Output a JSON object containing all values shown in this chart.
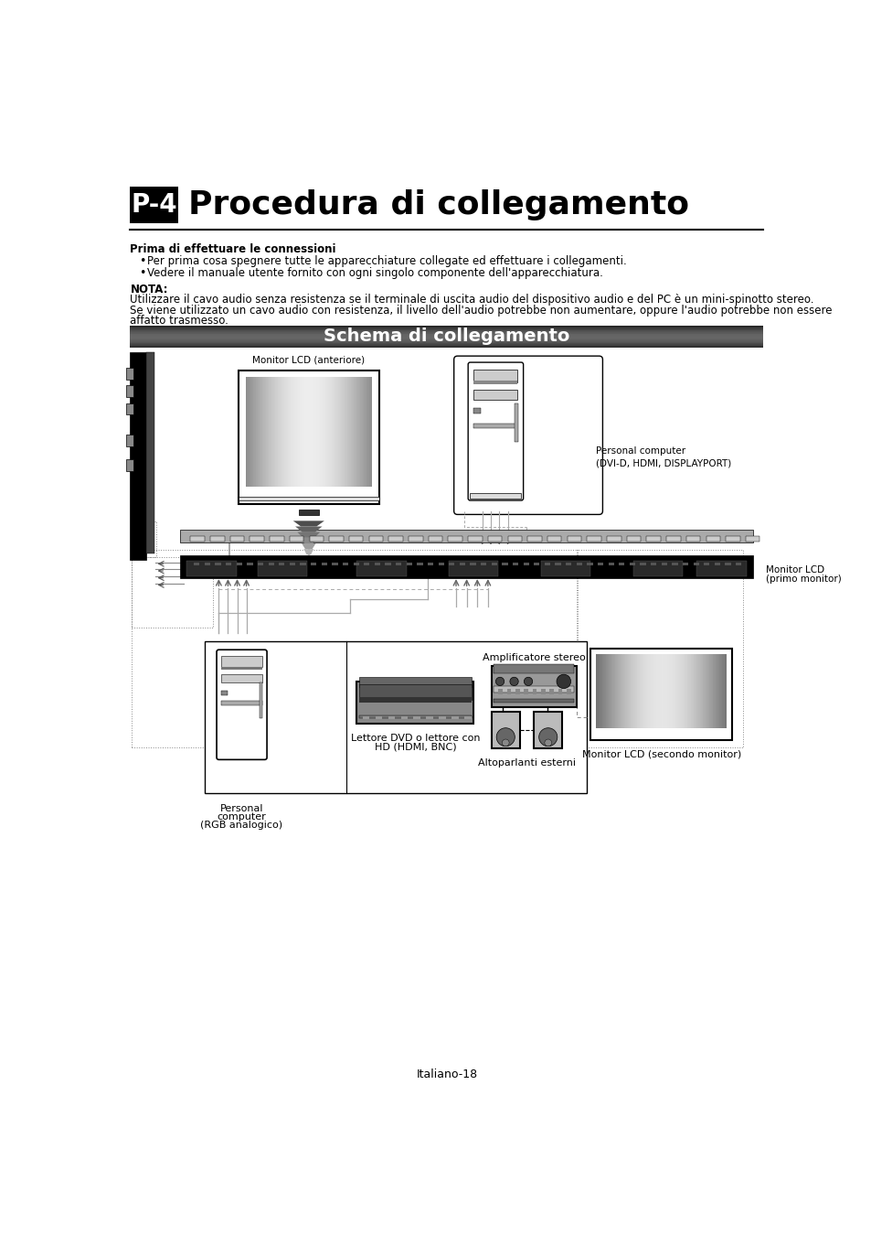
{
  "title_box": "P-4",
  "title_text": "Procedura di collegamento",
  "section_header": "Schema di collegamento",
  "bold_heading": "Prima di effettuare le connessioni",
  "bullet1": "Per prima cosa spegnere tutte le apparecchiature collegate ed effettuare i collegamenti.",
  "bullet2": "Vedere il manuale utente fornito con ogni singolo componente dell'apparecchiatura.",
  "nota_label": "NOTA:",
  "nota_line1": "Utilizzare il cavo audio senza resistenza se il terminale di uscita audio del dispositivo audio e del PC è un mini-spinotto stereo.",
  "nota_line2": "Se viene utilizzato un cavo audio con resistenza, il livello dell'audio potrebbe non aumentare, oppure l'audio potrebbe non essere",
  "nota_line3": "affatto trasmesso.",
  "label_monitor_front": "Monitor LCD (anteriore)",
  "label_pc_digital_1": "Personal computer",
  "label_pc_digital_2": "(DVI-D, HDMI, DISPLAYPORT)",
  "label_monitor_first_1": "Monitor LCD",
  "label_monitor_first_2": "(primo monitor)",
  "label_pc_analog_1": "Personal",
  "label_pc_analog_2": "computer",
  "label_pc_analog_3": "(RGB analogico)",
  "label_dvd_1": "Lettore DVD o lettore con",
  "label_dvd_2": "HD (HDMI, BNC)",
  "label_amplifier": "Amplificatore stereo",
  "label_speakers": "Altoparlanti esterni",
  "label_monitor_second": "Monitor LCD (secondo monitor)",
  "footer": "Italiano-18"
}
